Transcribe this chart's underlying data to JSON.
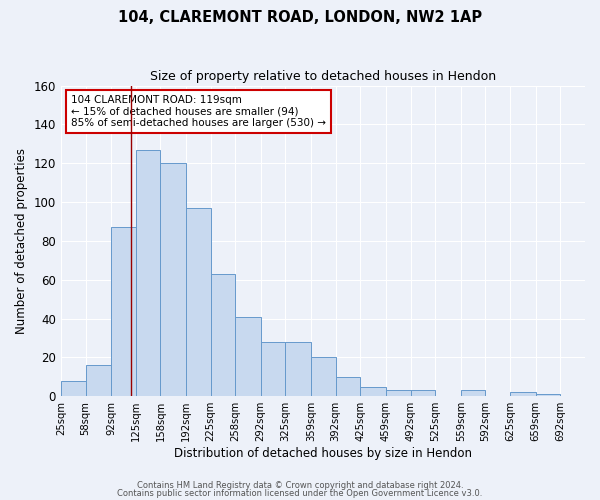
{
  "title": "104, CLAREMONT ROAD, LONDON, NW2 1AP",
  "subtitle": "Size of property relative to detached houses in Hendon",
  "xlabel": "Distribution of detached houses by size in Hendon",
  "ylabel": "Number of detached properties",
  "bin_edges": [
    25,
    58,
    92,
    125,
    158,
    192,
    225,
    258,
    292,
    325,
    359,
    392,
    425,
    459,
    492,
    525,
    559,
    592,
    625,
    659,
    692
  ],
  "bar_heights": [
    8,
    16,
    87,
    127,
    120,
    97,
    63,
    41,
    28,
    28,
    20,
    10,
    5,
    3,
    3,
    0,
    3,
    0,
    2,
    1
  ],
  "bar_color": "#c8d9ef",
  "bar_edgecolor": "#6699cc",
  "ylim": [
    0,
    160
  ],
  "yticks": [
    0,
    20,
    40,
    60,
    80,
    100,
    120,
    140,
    160
  ],
  "xtick_labels": [
    "25sqm",
    "58sqm",
    "92sqm",
    "125sqm",
    "158sqm",
    "192sqm",
    "225sqm",
    "258sqm",
    "292sqm",
    "325sqm",
    "359sqm",
    "392sqm",
    "425sqm",
    "459sqm",
    "492sqm",
    "525sqm",
    "559sqm",
    "592sqm",
    "625sqm",
    "659sqm",
    "692sqm"
  ],
  "red_line_x": 119,
  "annotation_text": "104 CLAREMONT ROAD: 119sqm\n← 15% of detached houses are smaller (94)\n85% of semi-detached houses are larger (530) →",
  "bg_color": "#edf1f9",
  "grid_color": "#ffffff",
  "footer1": "Contains HM Land Registry data © Crown copyright and database right 2024.",
  "footer2": "Contains public sector information licensed under the Open Government Licence v3.0."
}
